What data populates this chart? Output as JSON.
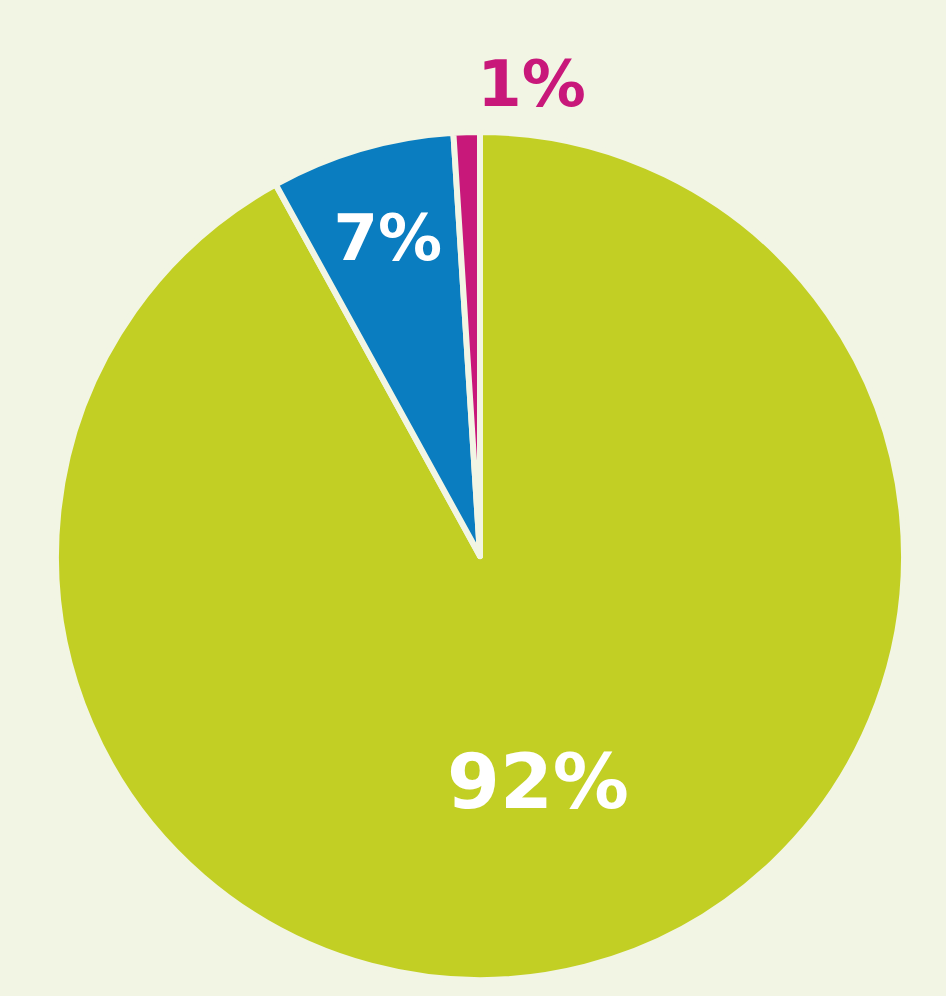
{
  "chart_data": {
    "type": "pie",
    "categories": [
      null,
      null,
      null
    ],
    "values": [
      92,
      7,
      1
    ],
    "colors": [
      "#c2cf24",
      "#0a7dc0",
      "#c8187a"
    ],
    "value_labels": [
      "92%",
      "7%",
      "1%"
    ]
  }
}
